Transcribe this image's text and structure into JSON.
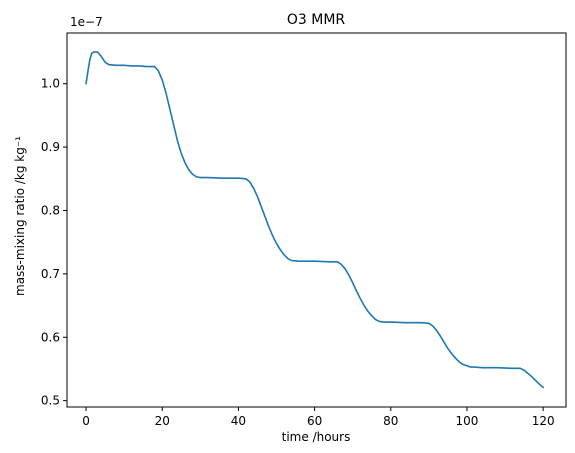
{
  "chart_data": {
    "type": "line",
    "title": "O3 MMR",
    "xlabel": "time /hours",
    "ylabel": "mass-mixing ratio /kg kg⁻¹",
    "offset_text": "1e−7",
    "xlim": [
      -5,
      126
    ],
    "ylim": [
      0.49,
      1.08
    ],
    "xticks": [
      0,
      20,
      40,
      60,
      80,
      100,
      120
    ],
    "xtick_labels": [
      "0",
      "20",
      "40",
      "60",
      "80",
      "100",
      "120"
    ],
    "yticks": [
      0.5,
      0.6,
      0.7,
      0.8,
      0.9,
      1.0
    ],
    "ytick_labels": [
      "0.5",
      "0.6",
      "0.7",
      "0.8",
      "0.9",
      "1.0"
    ],
    "grid": false,
    "series": [
      {
        "color": "#1f77b4",
        "x": [
          0,
          0.5,
          1,
          1.5,
          2,
          3,
          4,
          5,
          6,
          8,
          10,
          12,
          14,
          16,
          17,
          18,
          19,
          20,
          21,
          22,
          23,
          24,
          25,
          26,
          27,
          28,
          29,
          30,
          32,
          36,
          40,
          42,
          43,
          44,
          45,
          46,
          47,
          48,
          49,
          50,
          51,
          52,
          53,
          54,
          56,
          60,
          64,
          66,
          67,
          68,
          69,
          70,
          71,
          72,
          73,
          74,
          75,
          76,
          77,
          78,
          80,
          84,
          88,
          90,
          91,
          92,
          93,
          94,
          95,
          96,
          97,
          98,
          99,
          100,
          101,
          102,
          104,
          108,
          112,
          114,
          115,
          116,
          117,
          118,
          119,
          120
        ],
        "y": [
          1.0,
          1.02,
          1.038,
          1.048,
          1.05,
          1.05,
          1.043,
          1.034,
          1.03,
          1.029,
          1.029,
          1.028,
          1.028,
          1.027,
          1.027,
          1.027,
          1.02,
          1.006,
          0.985,
          0.96,
          0.935,
          0.91,
          0.89,
          0.875,
          0.864,
          0.857,
          0.853,
          0.852,
          0.852,
          0.851,
          0.851,
          0.85,
          0.845,
          0.835,
          0.822,
          0.806,
          0.79,
          0.774,
          0.76,
          0.748,
          0.738,
          0.73,
          0.724,
          0.721,
          0.72,
          0.72,
          0.719,
          0.719,
          0.715,
          0.708,
          0.698,
          0.686,
          0.673,
          0.661,
          0.65,
          0.641,
          0.634,
          0.628,
          0.625,
          0.624,
          0.624,
          0.623,
          0.623,
          0.622,
          0.618,
          0.611,
          0.602,
          0.592,
          0.582,
          0.574,
          0.567,
          0.561,
          0.557,
          0.555,
          0.553,
          0.553,
          0.552,
          0.552,
          0.551,
          0.551,
          0.548,
          0.543,
          0.538,
          0.532,
          0.526,
          0.521
        ]
      }
    ]
  }
}
